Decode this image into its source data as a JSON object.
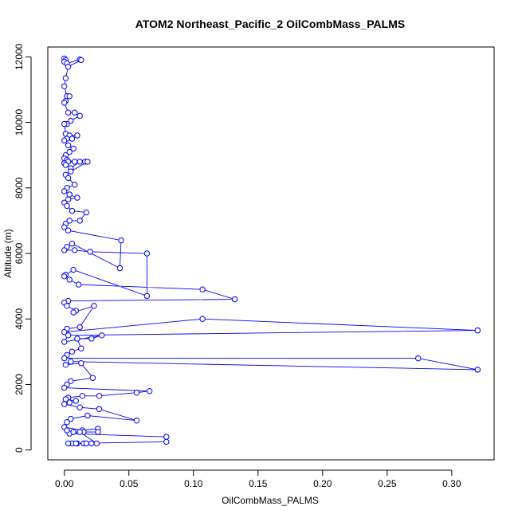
{
  "chart_data": {
    "type": "line",
    "title": "ATOM2 Northeast_Pacific_2 OilCombMass_PALMS",
    "xlabel": "OilCombMass_PALMS",
    "ylabel": "Altitude (m)",
    "xlim": [
      -0.0128,
      0.3328
    ],
    "ylim": [
      -300,
      12300
    ],
    "xticks": [
      0.0,
      0.05,
      0.1,
      0.15,
      0.2,
      0.25,
      0.3
    ],
    "xtick_labels": [
      "0.00",
      "0.05",
      "0.10",
      "0.15",
      "0.20",
      "0.25",
      "0.30"
    ],
    "yticks": [
      0,
      2000,
      4000,
      6000,
      8000,
      10000,
      12000
    ],
    "ytick_labels": [
      "0",
      "2000",
      "4000",
      "6000",
      "8000",
      "10000",
      "12000"
    ],
    "marker": "open-circle",
    "grid": false,
    "series_color": "#0000ff",
    "series": [
      {
        "x": [
          0.0,
          0.001,
          0.0,
          0.002,
          0.012,
          0.013,
          0.003,
          0.001,
          0.0,
          0.002,
          0.004,
          0.001,
          0.0,
          0.003,
          0.008,
          0.012,
          0.005,
          0.002,
          0.0,
          0.001,
          0.004,
          0.01,
          0.006,
          0.002,
          0.0,
          0.003,
          0.007,
          0.004,
          0.001,
          0.0,
          0.002,
          0.008,
          0.003,
          0.0,
          0.001,
          0.005,
          0.012,
          0.016,
          0.018,
          0.005,
          0.001,
          0.003,
          0.008,
          0.002,
          0.0,
          0.004,
          0.01,
          0.003,
          0.0,
          0.002,
          0.006,
          0.017,
          0.012,
          0.004,
          0.001,
          0.0,
          0.003,
          0.044,
          0.043,
          0.006,
          0.002,
          0.0,
          0.008,
          0.02,
          0.064,
          0.064,
          0.007,
          0.001,
          0.0,
          0.004,
          0.011,
          0.107,
          0.132,
          0.003,
          0.0,
          0.002,
          0.009,
          0.007,
          0.023,
          0.012,
          0.002,
          0.0,
          0.107,
          0.32,
          0.32,
          0.003,
          0.0,
          0.029,
          0.021,
          0.01,
          0.013,
          0.006,
          0.002,
          0.0,
          0.274,
          0.32,
          0.32,
          0.005,
          0.001,
          0.013,
          0.022,
          0.005,
          0.002,
          0.0,
          0.066,
          0.056,
          0.027,
          0.014,
          0.003,
          0.001,
          0.009,
          0.004,
          0.0,
          0.012,
          0.027,
          0.056,
          0.018,
          0.005,
          0.002,
          0.0,
          0.014,
          0.026,
          0.026,
          0.015,
          0.004,
          0.079,
          0.079,
          0.01,
          0.006,
          0.003,
          0.009,
          0.015,
          0.017,
          0.021,
          0.025,
          0.012,
          0.007,
          0.002
        ],
        "y": [
          11950,
          11900,
          11850,
          11800,
          11920,
          11900,
          11700,
          11350,
          11100,
          10800,
          10800,
          10650,
          10600,
          10300,
          10300,
          10200,
          10050,
          9950,
          9950,
          9650,
          9600,
          9600,
          9500,
          9500,
          9450,
          9300,
          9200,
          9100,
          9000,
          8900,
          8850,
          8800,
          8800,
          8750,
          8700,
          8600,
          8800,
          8800,
          8800,
          8500,
          8400,
          8300,
          8100,
          8000,
          7900,
          7800,
          7700,
          7650,
          7550,
          7450,
          7300,
          7250,
          7000,
          7000,
          6900,
          6800,
          6700,
          6400,
          5550,
          6300,
          6200,
          6100,
          6100,
          6050,
          6000,
          4700,
          5500,
          5350,
          5300,
          5200,
          5050,
          4900,
          4600,
          4550,
          4500,
          4400,
          4250,
          4200,
          4400,
          3750,
          3700,
          3600,
          4000,
          3650,
          3650,
          3500,
          3300,
          3500,
          3400,
          3400,
          3100,
          3000,
          2900,
          2800,
          2800,
          2450,
          2450,
          2700,
          2600,
          2650,
          2200,
          2100,
          2000,
          1900,
          1800,
          1750,
          1650,
          1650,
          1600,
          1550,
          1500,
          1450,
          1400,
          1300,
          1250,
          900,
          1050,
          950,
          850,
          700,
          600,
          650,
          550,
          550,
          500,
          400,
          250,
          200,
          200,
          200,
          200,
          200,
          200,
          200,
          200,
          550,
          550,
          600
        ]
      }
    ]
  }
}
